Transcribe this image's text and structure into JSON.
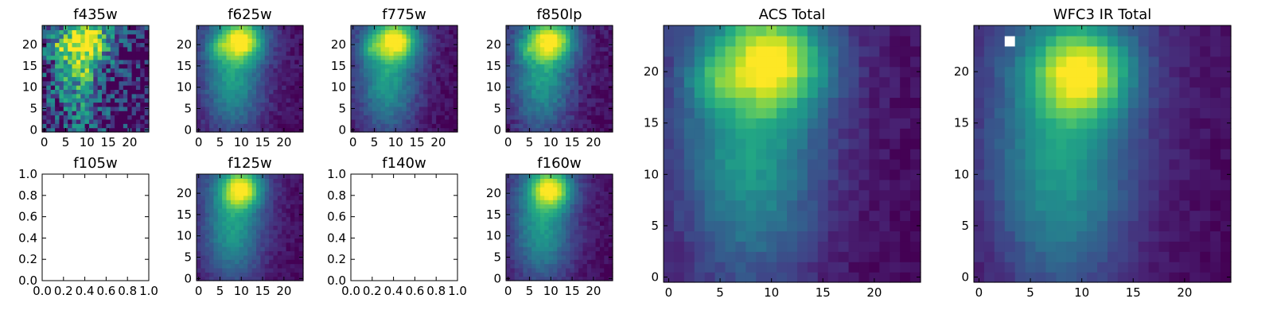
{
  "chart_data": [
    {
      "type": "heatmap",
      "title": "f435w",
      "xlim": [
        -0.5,
        24.5
      ],
      "ylim": [
        -0.5,
        24.5
      ],
      "xticks": [
        0,
        5,
        10,
        15,
        20
      ],
      "yticks": [
        0,
        5,
        10,
        15,
        20
      ],
      "colormap": "viridis",
      "peaks": [
        {
          "x": 10,
          "y": 21
        }
      ],
      "flux_scale": 0.55,
      "noise": 0.3,
      "secondary": [
        {
          "x": 3,
          "y": 19,
          "amplitude": 0.85
        },
        {
          "x": 8,
          "y": 15,
          "amplitude": 0.8
        }
      ]
    },
    {
      "type": "heatmap",
      "title": "f625w",
      "xlim": [
        -0.5,
        24.5
      ],
      "ylim": [
        -0.5,
        24.5
      ],
      "xticks": [
        0,
        5,
        10,
        15,
        20
      ],
      "yticks": [
        0,
        5,
        10,
        15,
        20
      ],
      "colormap": "viridis",
      "peaks": [
        {
          "x": 10,
          "y": 21
        }
      ],
      "flux_scale": 1.0,
      "noise": 0.05,
      "secondary": [
        {
          "x": 4,
          "y": 19,
          "amplitude": 0.55
        }
      ]
    },
    {
      "type": "heatmap",
      "title": "f775w",
      "xlim": [
        -0.5,
        24.5
      ],
      "ylim": [
        -0.5,
        24.5
      ],
      "xticks": [
        0,
        5,
        10,
        15,
        20
      ],
      "yticks": [
        0,
        5,
        10,
        15,
        20
      ],
      "colormap": "viridis",
      "peaks": [
        {
          "x": 10,
          "y": 21
        }
      ],
      "flux_scale": 1.0,
      "noise": 0.05,
      "secondary": [
        {
          "x": 4,
          "y": 19,
          "amplitude": 0.5
        }
      ]
    },
    {
      "type": "heatmap",
      "title": "f850lp",
      "xlim": [
        -0.5,
        24.5
      ],
      "ylim": [
        -0.5,
        24.5
      ],
      "xticks": [
        0,
        5,
        10,
        15,
        20
      ],
      "yticks": [
        0,
        5,
        10,
        15,
        20
      ],
      "colormap": "viridis",
      "peaks": [
        {
          "x": 10,
          "y": 21
        }
      ],
      "flux_scale": 1.0,
      "noise": 0.06,
      "secondary": [
        {
          "x": 4,
          "y": 19,
          "amplitude": 0.45
        }
      ]
    },
    {
      "type": "heatmap",
      "title": "f105w",
      "empty": true,
      "xlim": [
        0,
        1
      ],
      "ylim": [
        0,
        1
      ],
      "xticks": [
        0.0,
        0.2,
        0.4,
        0.6,
        0.8,
        1.0
      ],
      "yticks": [
        0.0,
        0.2,
        0.4,
        0.6,
        0.8,
        1.0
      ],
      "xticklabels": [
        "0.0",
        "0.2",
        "0.4",
        "0.6",
        "0.8",
        "1.0"
      ],
      "yticklabels": [
        "0.0",
        "0.2",
        "0.4",
        "0.6",
        "0.8",
        "1.0"
      ]
    },
    {
      "type": "heatmap",
      "title": "f125w",
      "xlim": [
        -0.5,
        24.5
      ],
      "ylim": [
        -0.5,
        24.5
      ],
      "xticks": [
        0,
        5,
        10,
        15,
        20
      ],
      "yticks": [
        0,
        5,
        10,
        15,
        20
      ],
      "colormap": "viridis",
      "peaks": [
        {
          "x": 10,
          "y": 21
        }
      ],
      "flux_scale": 1.0,
      "noise": 0.04,
      "concentrated": true
    },
    {
      "type": "heatmap",
      "title": "f140w",
      "empty": true,
      "xlim": [
        0,
        1
      ],
      "ylim": [
        0,
        1
      ],
      "xticks": [
        0.0,
        0.2,
        0.4,
        0.6,
        0.8,
        1.0
      ],
      "yticks": [
        0.0,
        0.2,
        0.4,
        0.6,
        0.8,
        1.0
      ],
      "xticklabels": [
        "0.0",
        "0.2",
        "0.4",
        "0.6",
        "0.8",
        "1.0"
      ],
      "yticklabels": [
        "0.0",
        "0.2",
        "0.4",
        "0.6",
        "0.8",
        "1.0"
      ]
    },
    {
      "type": "heatmap",
      "title": "f160w",
      "xlim": [
        -0.5,
        24.5
      ],
      "ylim": [
        -0.5,
        24.5
      ],
      "xticks": [
        0,
        5,
        10,
        15,
        20
      ],
      "yticks": [
        0,
        5,
        10,
        15,
        20
      ],
      "colormap": "viridis",
      "peaks": [
        {
          "x": 10,
          "y": 21
        }
      ],
      "flux_scale": 1.0,
      "noise": 0.04,
      "concentrated": true
    },
    {
      "type": "heatmap",
      "title": "ACS Total",
      "xlim": [
        -0.5,
        24.5
      ],
      "ylim": [
        -0.5,
        24.5
      ],
      "xticks": [
        0,
        5,
        10,
        15,
        20
      ],
      "yticks": [
        0,
        5,
        10,
        15,
        20
      ],
      "colormap": "viridis",
      "peaks": [
        {
          "x": 10,
          "y": 21
        }
      ],
      "flux_scale": 1.0,
      "noise": 0.04,
      "secondary": [
        {
          "x": 4,
          "y": 19,
          "amplitude": 0.5
        }
      ]
    },
    {
      "type": "heatmap",
      "title": "WFC3 IR Total",
      "xlim": [
        -0.5,
        24.5
      ],
      "ylim": [
        -0.5,
        24.5
      ],
      "xticks": [
        0,
        5,
        10,
        15,
        20
      ],
      "yticks": [
        0,
        5,
        10,
        15,
        20
      ],
      "colormap": "viridis",
      "peaks": [
        {
          "x": 10,
          "y": 20
        }
      ],
      "flux_scale": 1.0,
      "noise": 0.03,
      "concentrated": true,
      "masked_pixels": [
        {
          "x": 3,
          "y": 23
        }
      ]
    }
  ]
}
